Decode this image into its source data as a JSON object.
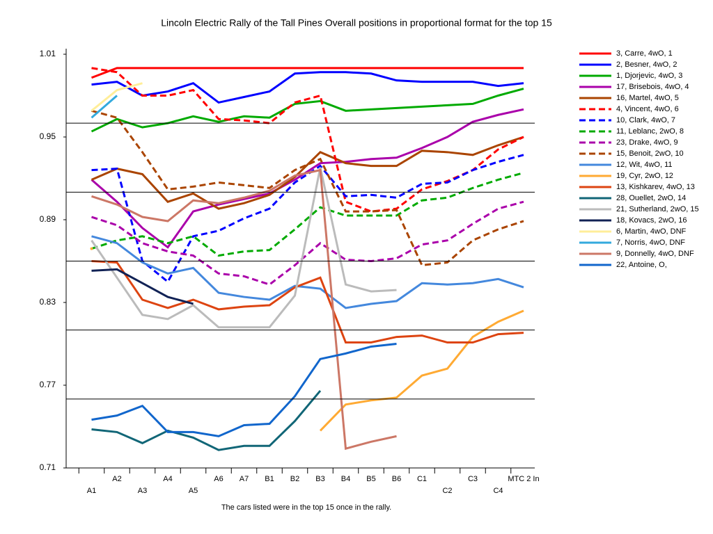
{
  "chart_data": {
    "type": "line",
    "title": "Lincoln Electric Rally of the Tall Pines  Overall positions in proportional format for the top 15",
    "footnote": "The cars listed were in the top 15 once in the rally.",
    "categories": [
      "A1",
      "A2",
      "A3",
      "A4",
      "A5",
      "A6",
      "A7",
      "B1",
      "B2",
      "B3",
      "B4",
      "B5",
      "B6",
      "C1",
      "C2",
      "C3",
      "C4",
      "MTC 2 In"
    ],
    "ylim": [
      0.71,
      1.01
    ],
    "yticks": [
      0.71,
      0.77,
      0.83,
      0.89,
      0.95,
      1.01
    ],
    "grid_lines": [
      0.76,
      0.81,
      0.86,
      0.91,
      0.96
    ],
    "legend": "right",
    "series": [
      {
        "name": "3, Carre, 4wO, 1",
        "color": "#ff0000",
        "values": [
          0.993,
          1.0,
          1.0,
          1.0,
          1.0,
          1.0,
          1.0,
          1.0,
          1.0,
          1.0,
          1.0,
          1.0,
          1.0,
          1.0,
          1.0,
          1.0,
          1.0,
          1.0
        ]
      },
      {
        "name": "2, Besner, 4wO, 2",
        "color": "#0000ff",
        "values": [
          0.988,
          0.99,
          0.98,
          0.983,
          0.989,
          0.975,
          0.979,
          0.983,
          0.996,
          0.997,
          0.997,
          0.996,
          0.991,
          0.99,
          0.99,
          0.99,
          0.987,
          0.989
        ]
      },
      {
        "name": "1, Djorjevic, 4wO, 3",
        "color": "#00aa00",
        "values": [
          0.954,
          0.963,
          0.957,
          0.96,
          0.965,
          0.961,
          0.965,
          0.964,
          0.974,
          0.976,
          0.969,
          0.97,
          0.971,
          0.972,
          0.973,
          0.974,
          0.98,
          0.985
        ]
      },
      {
        "name": "17, Brisebois, 4wO, 4",
        "color": "#aa00aa",
        "values": [
          0.919,
          0.903,
          0.884,
          0.87,
          0.896,
          0.901,
          0.905,
          0.909,
          0.919,
          0.931,
          0.932,
          0.934,
          0.935,
          0.942,
          0.95,
          0.961,
          0.966,
          0.97
        ]
      },
      {
        "name": "16, Martel, 4wO, 5",
        "color": "#aa4400",
        "values": [
          0.919,
          0.927,
          0.923,
          0.903,
          0.909,
          0.898,
          0.902,
          0.908,
          0.921,
          0.939,
          0.931,
          0.929,
          0.929,
          0.94,
          0.939,
          0.937,
          0.944,
          0.95
        ]
      },
      {
        "name": "4, Vincent, 4wO, 6",
        "color": "#ff0000",
        "dash": true,
        "values": [
          1.0,
          0.997,
          0.98,
          0.98,
          0.984,
          0.963,
          0.962,
          0.96,
          0.975,
          0.98,
          0.903,
          0.896,
          0.898,
          0.912,
          0.918,
          0.926,
          0.941,
          0.95
        ]
      },
      {
        "name": "10, Clark, 4wO, 7",
        "color": "#0000ff",
        "dash": true,
        "values": [
          0.926,
          0.927,
          0.86,
          0.845,
          0.878,
          0.882,
          0.891,
          0.898,
          0.917,
          0.929,
          0.907,
          0.908,
          0.906,
          0.916,
          0.917,
          0.926,
          0.932,
          0.937
        ]
      },
      {
        "name": "11, Leblanc, 2wO, 8",
        "color": "#00aa00",
        "dash": true,
        "values": [
          0.869,
          0.875,
          0.878,
          0.873,
          0.878,
          0.864,
          0.867,
          0.868,
          0.883,
          0.899,
          0.893,
          0.893,
          0.893,
          0.904,
          0.906,
          0.913,
          0.919,
          0.924
        ]
      },
      {
        "name": "23, Drake, 4wO, 9",
        "color": "#aa00aa",
        "dash": true,
        "values": [
          0.892,
          0.886,
          0.873,
          0.867,
          0.864,
          0.851,
          0.849,
          0.843,
          0.857,
          0.873,
          0.861,
          0.86,
          0.862,
          0.872,
          0.875,
          0.887,
          0.898,
          0.903
        ]
      },
      {
        "name": "15, Benoit, 2wO, 10",
        "color": "#aa4400",
        "dash": true,
        "values": [
          0.969,
          0.964,
          0.939,
          0.912,
          0.914,
          0.917,
          0.915,
          0.913,
          0.926,
          0.934,
          0.896,
          0.896,
          0.897,
          0.857,
          0.859,
          0.875,
          0.883,
          0.889
        ]
      },
      {
        "name": "12, Wit, 4wO, 11",
        "color": "#4488dd",
        "values": [
          0.878,
          0.873,
          0.859,
          0.851,
          0.855,
          0.837,
          0.834,
          0.832,
          0.842,
          0.84,
          0.826,
          0.829,
          0.831,
          0.844,
          0.843,
          0.844,
          0.847,
          0.841
        ]
      },
      {
        "name": "19, Cyr, 2wO, 12",
        "color": "#ffaa33",
        "values": [
          0.869,
          null,
          null,
          null,
          null,
          null,
          null,
          null,
          null,
          0.737,
          0.756,
          0.759,
          0.761,
          0.777,
          0.782,
          0.805,
          0.816,
          0.824
        ]
      },
      {
        "name": "13, Kishkarev, 4wO, 13",
        "color": "#dd4411",
        "values": [
          0.86,
          0.859,
          0.832,
          0.826,
          0.832,
          0.825,
          0.827,
          0.828,
          0.841,
          0.848,
          0.801,
          0.801,
          0.805,
          0.806,
          0.801,
          0.801,
          0.807,
          0.808
        ]
      },
      {
        "name": "28, Ouellet, 2wO, 14",
        "color": "#116677",
        "values": [
          0.738,
          0.736,
          0.728,
          0.737,
          0.732,
          0.723,
          0.726,
          0.726,
          0.744,
          0.766,
          null,
          null,
          null,
          null,
          null,
          null,
          null,
          null
        ]
      },
      {
        "name": "21, Sutherland, 2wO, 15",
        "color": "#bbbbbb",
        "values": [
          0.875,
          0.848,
          0.821,
          0.818,
          0.828,
          0.812,
          0.812,
          0.812,
          0.835,
          0.928,
          0.843,
          0.838,
          0.839,
          null,
          null,
          null,
          null,
          null
        ]
      },
      {
        "name": "18, Kovacs, 2wO, 16",
        "color": "#112255",
        "values": [
          0.853,
          0.854,
          0.844,
          0.834,
          0.829,
          null,
          null,
          null,
          null,
          null,
          null,
          null,
          null,
          null,
          null,
          null,
          null,
          null
        ]
      },
      {
        "name": "6, Martin, 4wO,  DNF",
        "color": "#ffee99",
        "values": [
          0.969,
          0.984,
          0.989,
          null,
          null,
          null,
          null,
          null,
          null,
          null,
          null,
          null,
          null,
          null,
          null,
          null,
          null,
          null
        ]
      },
      {
        "name": "7, Norris, 4wO,  DNF",
        "color": "#33aadd",
        "values": [
          0.964,
          0.98,
          null,
          null,
          null,
          null,
          null,
          null,
          null,
          null,
          null,
          null,
          null,
          null,
          null,
          null,
          null,
          null
        ]
      },
      {
        "name": "9, Donnelly, 4wO,  DNF",
        "color": "#cc7766",
        "values": [
          0.907,
          0.901,
          0.892,
          0.889,
          0.904,
          0.902,
          0.906,
          0.911,
          0.922,
          0.926,
          0.724,
          0.729,
          0.733,
          null,
          null,
          null,
          null,
          null
        ]
      },
      {
        "name": "22, Antoine, O,",
        "color": "#1166cc",
        "values": [
          0.745,
          0.748,
          0.755,
          0.736,
          0.736,
          0.733,
          0.741,
          0.742,
          0.762,
          0.789,
          0.793,
          0.798,
          0.8,
          null,
          null,
          null,
          null,
          null
        ]
      }
    ]
  }
}
